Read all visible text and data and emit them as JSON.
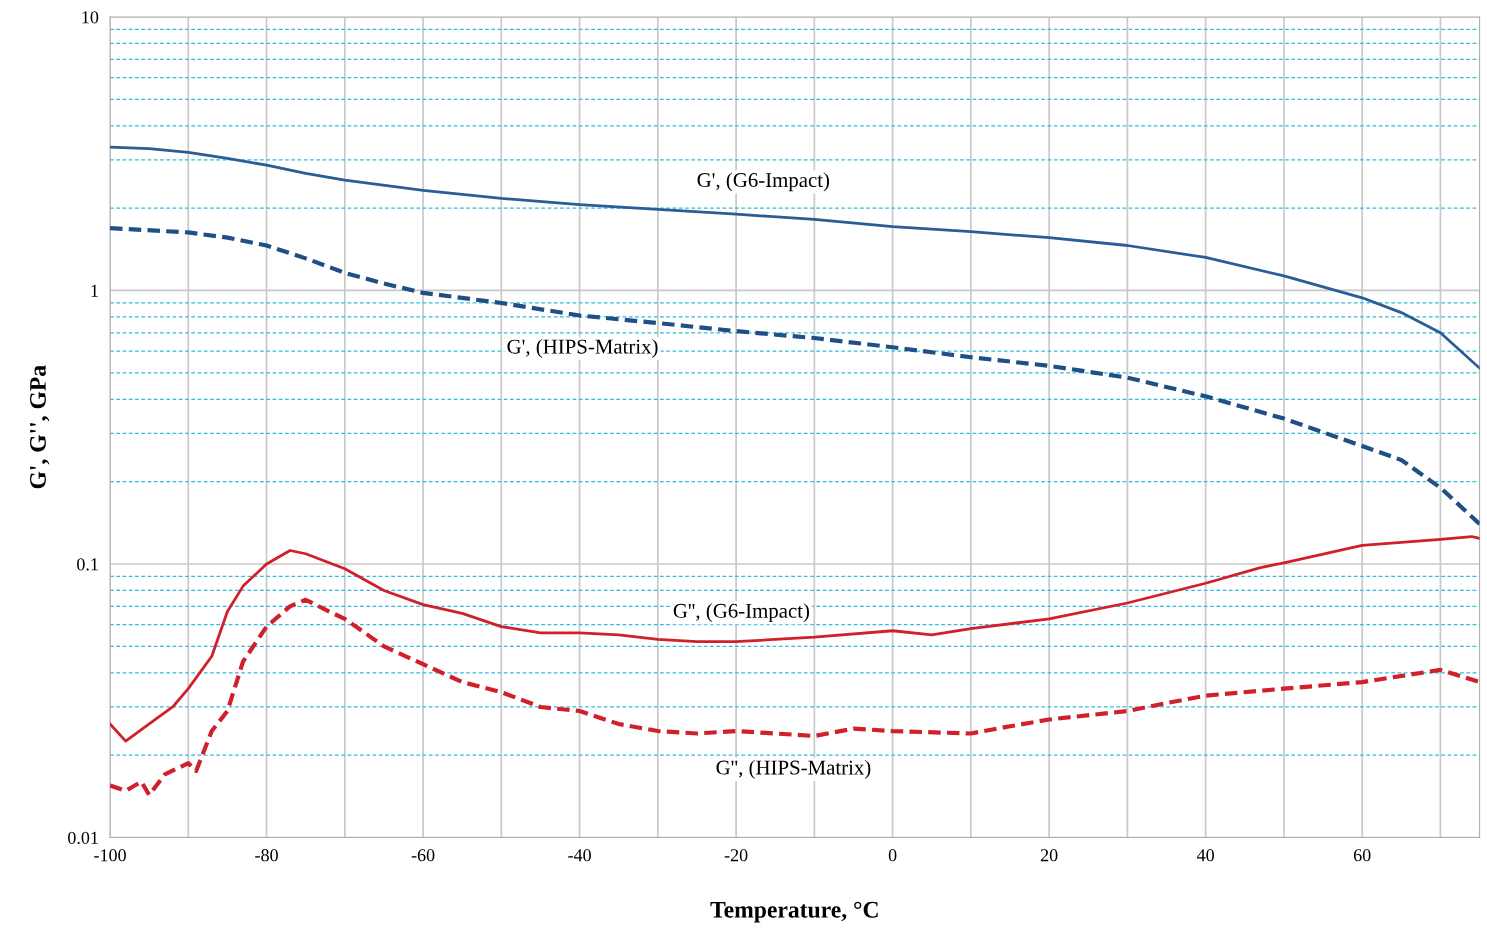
{
  "chart_data": {
    "type": "line",
    "xlabel": "Temperature, °C",
    "ylabel": "G', G'', GPa",
    "log": "y",
    "grid": true,
    "marker": "none",
    "xlim": [
      -100,
      75
    ],
    "xticks": [
      -100,
      {
        "value": -90,
        "label": null
      },
      -80,
      {
        "value": -70,
        "label": null
      },
      -60,
      {
        "value": -50,
        "label": null
      },
      -40,
      {
        "value": -30,
        "label": null
      },
      -20,
      {
        "value": -10,
        "label": null
      },
      0,
      {
        "value": 10,
        "label": null
      },
      20,
      {
        "value": 30,
        "label": null
      },
      40,
      {
        "value": 50,
        "label": null
      },
      60,
      {
        "value": 70,
        "label": null
      }
    ],
    "ylim": [
      0.01,
      10
    ],
    "yticks": [
      0.01,
      {
        "value": 0.02,
        "label": null
      },
      {
        "value": 0.03,
        "label": null
      },
      {
        "value": 0.04,
        "label": null
      },
      {
        "value": 0.05,
        "label": null
      },
      {
        "value": 0.06,
        "label": null
      },
      {
        "value": 0.07,
        "label": null
      },
      {
        "value": 0.08,
        "label": null
      },
      {
        "value": 0.09,
        "label": null
      },
      0.1,
      {
        "value": 0.2,
        "label": null
      },
      {
        "value": 0.3,
        "label": null
      },
      {
        "value": 0.4,
        "label": null
      },
      {
        "value": 0.5,
        "label": null
      },
      {
        "value": 0.6,
        "label": null
      },
      {
        "value": 0.7,
        "label": null
      },
      {
        "value": 0.8,
        "label": null
      },
      {
        "value": 0.9,
        "label": null
      },
      1,
      {
        "value": 2,
        "label": null
      },
      {
        "value": 3,
        "label": null
      },
      {
        "value": 4,
        "label": null
      },
      {
        "value": 5,
        "label": null
      },
      {
        "value": 6,
        "label": null
      },
      {
        "value": 7,
        "label": null
      },
      {
        "value": 8,
        "label": null
      },
      {
        "value": 9,
        "label": null
      },
      10
    ],
    "series": [
      {
        "color": "#2a5d96",
        "line_style": "solid",
        "x": [
          -100,
          -95,
          -90,
          -85,
          -80,
          -75,
          -70,
          -60,
          -50,
          -40,
          -30,
          -20,
          -10,
          0,
          10,
          20,
          30,
          40,
          50,
          60,
          65,
          70,
          75
        ],
        "values": [
          3.34,
          3.3,
          3.2,
          3.04,
          2.87,
          2.68,
          2.53,
          2.32,
          2.17,
          2.06,
          1.98,
          1.9,
          1.82,
          1.71,
          1.64,
          1.56,
          1.46,
          1.32,
          1.13,
          0.94,
          0.83,
          0.7,
          0.52
        ]
      },
      {
        "color": "#1f4f86",
        "line_style": "dashed",
        "x": [
          -100,
          -90,
          -85,
          -80,
          -75,
          -70,
          -65,
          -60,
          -50,
          -40,
          -30,
          -20,
          -10,
          0,
          10,
          20,
          30,
          40,
          50,
          60,
          65,
          70,
          75
        ],
        "values": [
          1.69,
          1.63,
          1.56,
          1.46,
          1.31,
          1.16,
          1.06,
          0.98,
          0.9,
          0.81,
          0.76,
          0.71,
          0.67,
          0.62,
          0.57,
          0.53,
          0.48,
          0.41,
          0.34,
          0.27,
          0.24,
          0.19,
          0.14
        ]
      },
      {
        "color": "#d0202a",
        "line_style": "solid",
        "x": [
          -100,
          -98,
          -95,
          -92,
          -90,
          -87,
          -85,
          -83,
          -80,
          -77,
          -75,
          -70,
          -65,
          -60,
          -55,
          -50,
          -45,
          -40,
          -35,
          -30,
          -25,
          -20,
          -10,
          0,
          5,
          10,
          20,
          30,
          40,
          47,
          50,
          60,
          70,
          74,
          75
        ],
        "values": [
          0.026,
          0.0225,
          0.026,
          0.03,
          0.035,
          0.046,
          0.067,
          0.083,
          0.1,
          0.112,
          0.109,
          0.096,
          0.08,
          0.071,
          0.066,
          0.059,
          0.056,
          0.056,
          0.055,
          0.053,
          0.052,
          0.052,
          0.054,
          0.057,
          0.055,
          0.058,
          0.063,
          0.072,
          0.085,
          0.097,
          0.101,
          0.117,
          0.123,
          0.126,
          0.124
        ]
      },
      {
        "color": "#d0202a",
        "line_style": "dashed",
        "x": [
          -100,
          -98,
          -96,
          -95,
          -93,
          -90,
          -89,
          -87,
          -85,
          -83,
          -80,
          -77,
          -75,
          -72,
          -70,
          -65,
          -60,
          -55,
          -50,
          -45,
          -40,
          -35,
          -30,
          -25,
          -20,
          -15,
          -10,
          -5,
          0,
          10,
          15,
          20,
          30,
          35,
          40,
          50,
          60,
          70,
          75
        ],
        "values": [
          0.0155,
          0.0148,
          0.016,
          0.0143,
          0.017,
          0.0187,
          0.0175,
          0.0245,
          0.029,
          0.044,
          0.059,
          0.07,
          0.074,
          0.067,
          0.063,
          0.05,
          0.043,
          0.037,
          0.034,
          0.03,
          0.029,
          0.026,
          0.0245,
          0.024,
          0.0245,
          0.024,
          0.0235,
          0.025,
          0.0245,
          0.024,
          0.0255,
          0.027,
          0.029,
          0.031,
          0.033,
          0.035,
          0.037,
          0.041,
          0.037
        ]
      }
    ],
    "annotations": [
      "G', (G6-Impact)",
      "G', (HIPS-Matrix)",
      "G'', (G6-Impact)",
      "G'', (HIPS-Matrix)"
    ]
  }
}
